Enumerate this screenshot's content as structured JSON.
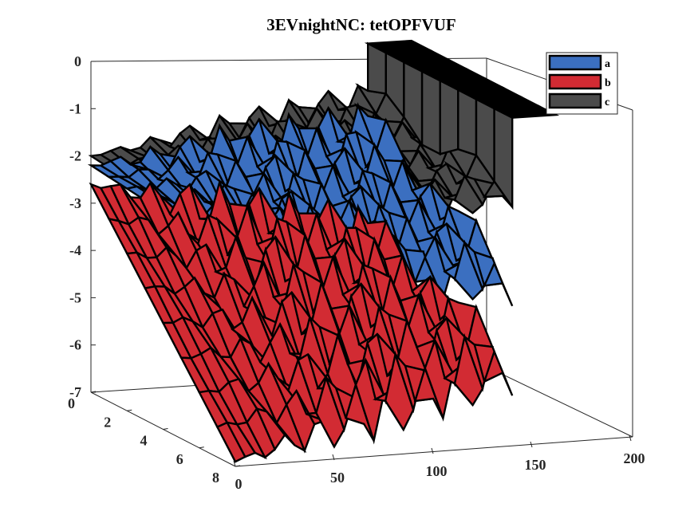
{
  "chart_data": {
    "type": "surface3d",
    "title": "3EVnightNC: tetOPFVUF",
    "xlabel": "",
    "ylabel": "",
    "zlabel": "",
    "xlim": [
      0,
      200
    ],
    "ylim": [
      0,
      8
    ],
    "zlim": [
      -7,
      0
    ],
    "x_ticks": [
      "0",
      "50",
      "100",
      "150",
      "200"
    ],
    "y_ticks": [
      "0",
      "2",
      "4",
      "6",
      "8"
    ],
    "z_ticks": [
      "0",
      "-1",
      "-2",
      "-3",
      "-4",
      "-5",
      "-6",
      "-7"
    ],
    "y_levels": [
      0,
      1,
      2,
      3,
      4,
      5,
      6,
      7,
      8
    ],
    "x_range_drawn": [
      0,
      140
    ],
    "grid": false,
    "legend_position": "top-right",
    "series": [
      {
        "name": "a",
        "color": "#3b6fc0",
        "start_y0": -2.2,
        "start_y8": -2.6,
        "end_value": -1.7,
        "end_value_y8": -3.5,
        "oscillation": 0.5
      },
      {
        "name": "b",
        "color": "#d22b33",
        "start_y0": -2.6,
        "start_y8": -6.9,
        "end_value": -4.0,
        "end_value_y8": -5.3,
        "oscillation": 0.6
      },
      {
        "name": "c",
        "color": "#4b4b4b",
        "start_y0": -2.0,
        "start_y8": -2.4,
        "end_value": -1.1,
        "end_value_y8": -1.6,
        "oscillation": 0.3,
        "step_at": 140,
        "step_value": 0.0
      }
    ]
  }
}
